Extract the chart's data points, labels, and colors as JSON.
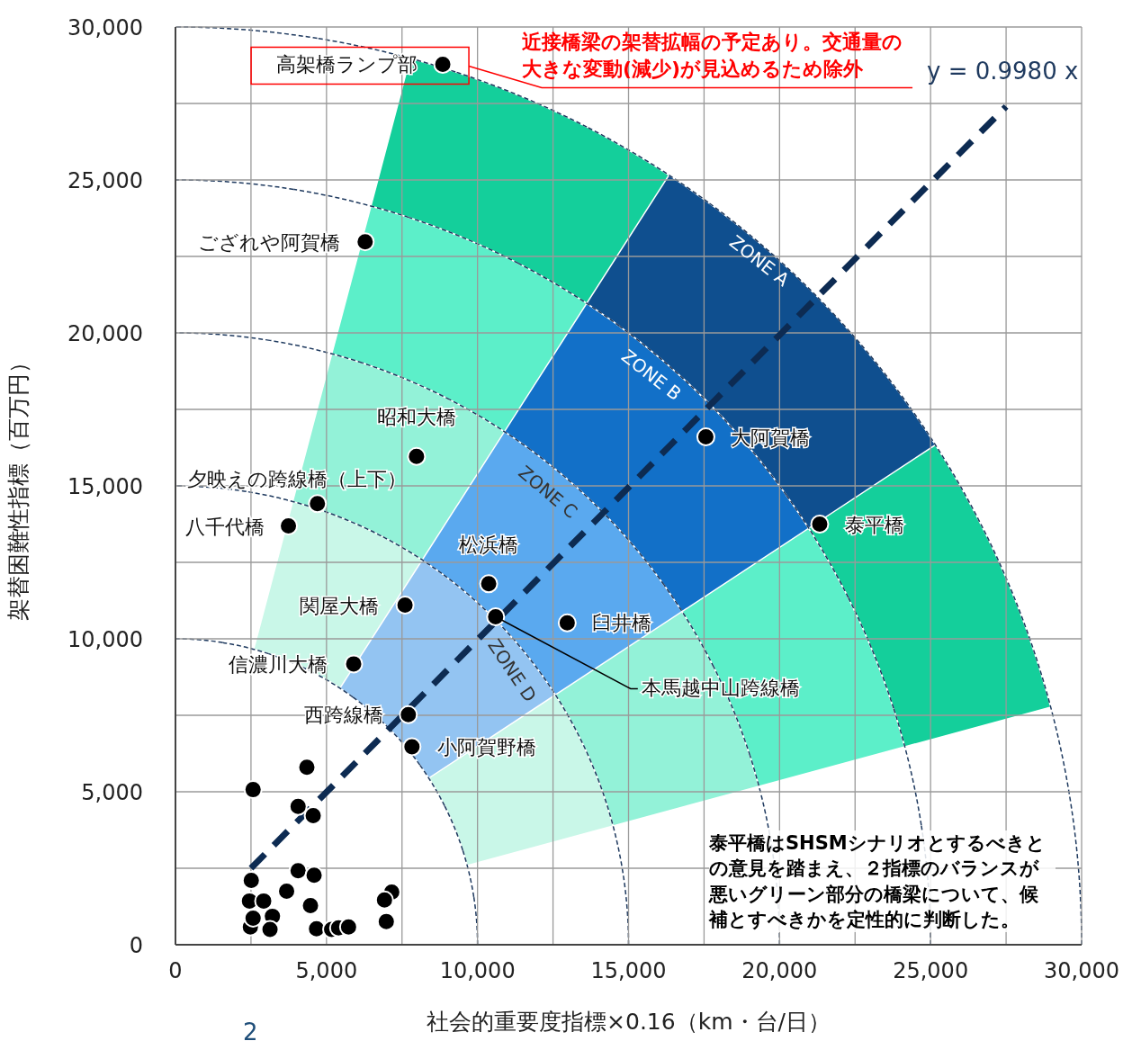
{
  "chart_data": {
    "type": "scatter",
    "xlabel": "社会的重要度指標×0.16（km・台/日）",
    "ylabel": "架替困難性指標（百万円）",
    "xlim": [
      0,
      30000
    ],
    "ylim": [
      0,
      30000
    ],
    "xticks": [
      {
        "value": 0,
        "label": "0"
      },
      {
        "value": 2500,
        "label": null
      },
      {
        "value": 5000,
        "label": "5,000"
      },
      {
        "value": 7500,
        "label": null
      },
      {
        "value": 10000,
        "label": "10,000"
      },
      {
        "value": 12500,
        "label": null
      },
      {
        "value": 15000,
        "label": "15,000"
      },
      {
        "value": 17500,
        "label": null
      },
      {
        "value": 20000,
        "label": "20,000"
      },
      {
        "value": 22500,
        "label": null
      },
      {
        "value": 25000,
        "label": "25,000"
      },
      {
        "value": 27500,
        "label": null
      },
      {
        "value": 30000,
        "label": "30,000"
      }
    ],
    "yticks": [
      {
        "value": 0,
        "label": "0"
      },
      {
        "value": 2500,
        "label": null
      },
      {
        "value": 5000,
        "label": "5,000"
      },
      {
        "value": 7500,
        "label": null
      },
      {
        "value": 10000,
        "label": "10,000"
      },
      {
        "value": 12500,
        "label": null
      },
      {
        "value": 15000,
        "label": "15,000"
      },
      {
        "value": 17500,
        "label": null
      },
      {
        "value": 20000,
        "label": "20,000"
      },
      {
        "value": 22500,
        "label": null
      },
      {
        "value": 25000,
        "label": "25,000"
      },
      {
        "value": 27500,
        "label": null
      },
      {
        "value": 30000,
        "label": "30,000"
      }
    ],
    "grid": true,
    "series": [
      {
        "type": "scatter",
        "color": "#000000",
        "marker": "circle",
        "x": [
          8850,
          6280,
          7980,
          4700,
          3740,
          17560,
          21330,
          10370,
          10600,
          12970,
          7600,
          5900,
          7710,
          7830,
          4350,
          2570,
          4060,
          4560,
          4060,
          4590,
          2510,
          3680,
          2450,
          2920,
          4470,
          7160,
          6920,
          6980,
          3210,
          2480,
          3130,
          4670,
          5170,
          5400,
          5730,
          2570
        ],
        "values": [
          28780,
          22980,
          15960,
          14420,
          13690,
          16600,
          13750,
          11800,
          10720,
          10520,
          11100,
          9180,
          7520,
          6470,
          5800,
          5070,
          4520,
          4220,
          2420,
          2270,
          2100,
          1750,
          1430,
          1430,
          1280,
          1720,
          1460,
          760,
          930,
          580,
          500,
          520,
          500,
          550,
          580,
          870
        ]
      },
      {
        "type": "line",
        "color": "#0d2b52",
        "line_style": "dashed",
        "marker": "none",
        "x": [
          2500,
          27500
        ],
        "values": [
          2500,
          27400
        ]
      }
    ],
    "annotations": [
      {
        "text": "高架橋ランプ部",
        "x": 8850,
        "y": 28780
      },
      {
        "text": "ござれや阿賀橋",
        "x": 6280,
        "y": 22980
      },
      {
        "text": "昭和大橋",
        "x": 7980,
        "y": 15960
      },
      {
        "text": "夕映えの跨線橋（上下）",
        "x": 4700,
        "y": 14420
      },
      {
        "text": "八千代橋",
        "x": 3740,
        "y": 13690
      },
      {
        "text": "大阿賀橋",
        "x": 17560,
        "y": 16600
      },
      {
        "text": "泰平橋",
        "x": 21330,
        "y": 13750
      },
      {
        "text": "松浜橋",
        "x": 10370,
        "y": 11800
      },
      {
        "text": "本馬越中山跨線橋",
        "x": 10600,
        "y": 10720
      },
      {
        "text": "臼井橋",
        "x": 12970,
        "y": 10520
      },
      {
        "text": "関屋大橋",
        "x": 7600,
        "y": 11100
      },
      {
        "text": "信濃川大橋",
        "x": 5900,
        "y": 9180
      },
      {
        "text": "西跨線橋",
        "x": 7710,
        "y": 7520
      },
      {
        "text": "小阿賀野橋",
        "x": 7830,
        "y": 6470
      },
      "ZONE A",
      "ZONE B",
      "ZONE C",
      "ZONE D",
      "y = 0.9980 x",
      "近接橋梁の架替拡幅の予定あり。交通量の大きな変動(減少)が見込めるため除外",
      "泰平橋はSHSMシナリオとするべきとの意見を踏まえ、２指標のバランスが悪いグリーン部分の橋梁について、候補とすべきかを定性的に判断した。",
      "2"
    ]
  }
}
